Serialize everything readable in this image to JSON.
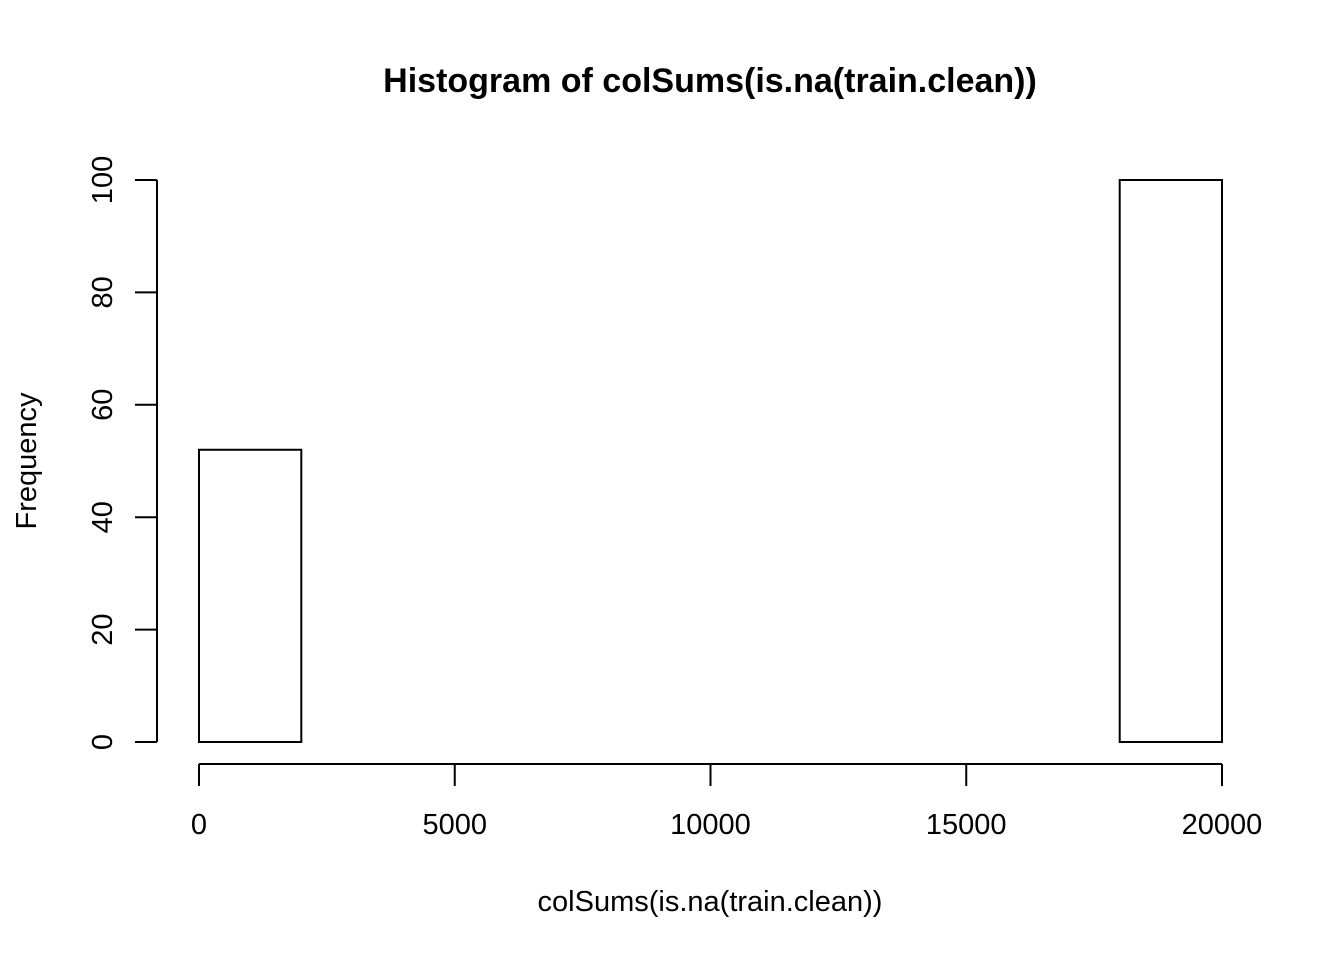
{
  "chart_data": {
    "type": "bar",
    "subtype": "histogram",
    "title": "Histogram of colSums(is.na(train.clean))",
    "xlabel": "colSums(is.na(train.clean))",
    "ylabel": "Frequency",
    "bin_edges": [
      0,
      2000,
      4000,
      6000,
      8000,
      10000,
      12000,
      14000,
      16000,
      18000,
      20000
    ],
    "values": [
      52,
      0,
      0,
      0,
      0,
      0,
      0,
      0,
      0,
      100
    ],
    "xlim": [
      0,
      20000
    ],
    "ylim": [
      0,
      100
    ],
    "xticks": [
      "0",
      "5000",
      "10000",
      "15000",
      "20000"
    ],
    "yticks": [
      "0",
      "20",
      "40",
      "60",
      "80",
      "100"
    ],
    "grid": false,
    "legend": "none",
    "bar_fill": "#ffffff",
    "bar_stroke": "#000000"
  }
}
